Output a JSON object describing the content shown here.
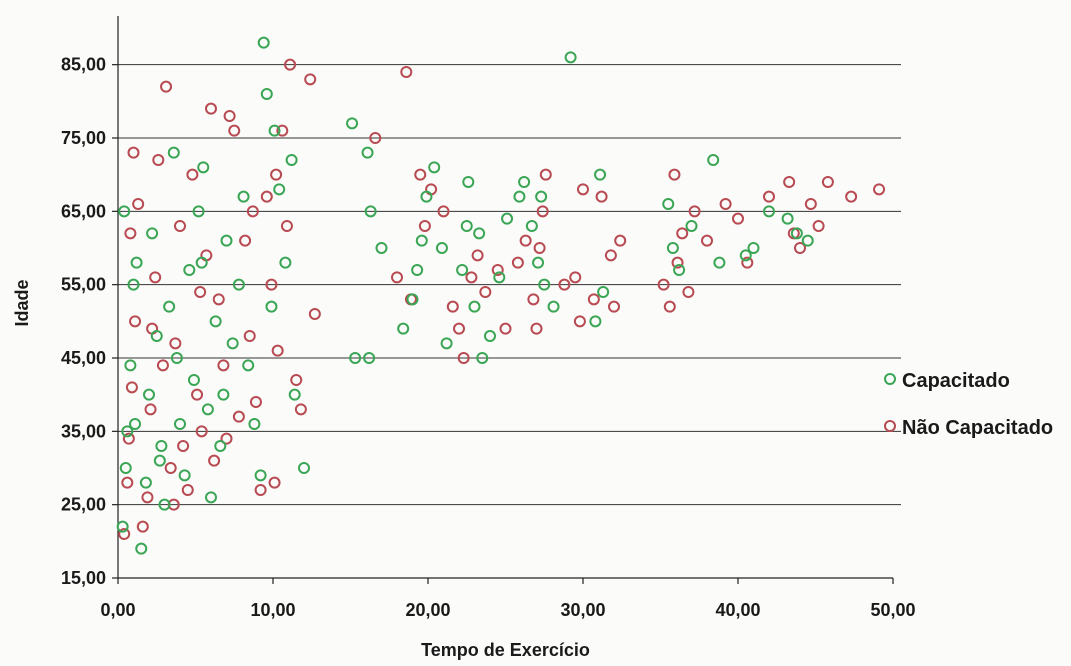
{
  "chart_data": {
    "type": "scatter",
    "title": "",
    "xlabel": "Tempo de Exercício",
    "ylabel": "Idade",
    "xlim": [
      0,
      50
    ],
    "ylim": [
      15,
      90
    ],
    "x_ticks": [
      "0,00",
      "10,00",
      "20,00",
      "30,00",
      "40,00",
      "50,00"
    ],
    "y_ticks": [
      "15,00",
      "25,00",
      "35,00",
      "45,00",
      "55,00",
      "65,00",
      "75,00",
      "85,00"
    ],
    "grid": true,
    "legend_position": "right",
    "series": [
      {
        "name": "Capacitado",
        "color": "#3aa655",
        "points": [
          [
            0.3,
            22
          ],
          [
            0.5,
            30
          ],
          [
            0.6,
            35
          ],
          [
            0.8,
            44
          ],
          [
            1.0,
            55
          ],
          [
            1.2,
            58
          ],
          [
            0.4,
            65
          ],
          [
            1.5,
            19
          ],
          [
            1.8,
            28
          ],
          [
            2.0,
            40
          ],
          [
            2.2,
            62
          ],
          [
            2.5,
            48
          ],
          [
            2.8,
            33
          ],
          [
            3.0,
            25
          ],
          [
            3.3,
            52
          ],
          [
            3.6,
            73
          ],
          [
            3.8,
            45
          ],
          [
            4.0,
            36
          ],
          [
            4.3,
            29
          ],
          [
            4.6,
            57
          ],
          [
            4.9,
            42
          ],
          [
            5.2,
            65
          ],
          [
            5.5,
            71
          ],
          [
            5.8,
            38
          ],
          [
            6.0,
            26
          ],
          [
            6.3,
            50
          ],
          [
            6.6,
            33
          ],
          [
            7.0,
            61
          ],
          [
            7.4,
            47
          ],
          [
            7.8,
            55
          ],
          [
            8.1,
            67
          ],
          [
            8.4,
            44
          ],
          [
            8.8,
            36
          ],
          [
            9.2,
            29
          ],
          [
            9.4,
            88
          ],
          [
            9.6,
            81
          ],
          [
            10.1,
            76
          ],
          [
            10.4,
            68
          ],
          [
            10.8,
            58
          ],
          [
            11.2,
            72
          ],
          [
            11.4,
            40
          ],
          [
            12.0,
            30
          ],
          [
            1.1,
            36
          ],
          [
            2.7,
            31
          ],
          [
            5.4,
            58
          ],
          [
            6.8,
            40
          ],
          [
            9.9,
            52
          ],
          [
            15.1,
            77
          ],
          [
            15.3,
            45
          ],
          [
            16.1,
            73
          ],
          [
            16.2,
            45
          ],
          [
            16.3,
            65
          ],
          [
            17.0,
            60
          ],
          [
            18.4,
            49
          ],
          [
            19.0,
            53
          ],
          [
            19.3,
            57
          ],
          [
            19.6,
            61
          ],
          [
            19.9,
            67
          ],
          [
            20.4,
            71
          ],
          [
            20.9,
            60
          ],
          [
            21.2,
            47
          ],
          [
            22.2,
            57
          ],
          [
            22.5,
            63
          ],
          [
            22.6,
            69
          ],
          [
            23.0,
            52
          ],
          [
            23.3,
            62
          ],
          [
            23.5,
            45
          ],
          [
            24.0,
            48
          ],
          [
            24.6,
            56
          ],
          [
            25.1,
            64
          ],
          [
            25.9,
            67
          ],
          [
            26.2,
            69
          ],
          [
            26.7,
            63
          ],
          [
            27.1,
            58
          ],
          [
            27.3,
            67
          ],
          [
            27.5,
            55
          ],
          [
            28.1,
            52
          ],
          [
            29.2,
            86
          ],
          [
            30.8,
            50
          ],
          [
            31.1,
            70
          ],
          [
            31.3,
            54
          ],
          [
            35.5,
            66
          ],
          [
            35.8,
            60
          ],
          [
            36.2,
            57
          ],
          [
            37.0,
            63
          ],
          [
            38.4,
            72
          ],
          [
            38.8,
            58
          ],
          [
            40.5,
            59
          ],
          [
            41.0,
            60
          ],
          [
            42.0,
            65
          ],
          [
            43.2,
            64
          ],
          [
            43.8,
            62
          ],
          [
            44.5,
            61
          ]
        ]
      },
      {
        "name": "Não Capacitado",
        "color": "#b84a52",
        "points": [
          [
            0.4,
            21
          ],
          [
            0.6,
            28
          ],
          [
            0.7,
            34
          ],
          [
            0.9,
            41
          ],
          [
            1.1,
            50
          ],
          [
            1.3,
            66
          ],
          [
            1.0,
            73
          ],
          [
            1.6,
            22
          ],
          [
            1.9,
            26
          ],
          [
            2.1,
            38
          ],
          [
            2.4,
            56
          ],
          [
            2.6,
            72
          ],
          [
            2.9,
            44
          ],
          [
            3.1,
            82
          ],
          [
            3.4,
            30
          ],
          [
            3.7,
            47
          ],
          [
            4.0,
            63
          ],
          [
            4.2,
            33
          ],
          [
            4.5,
            27
          ],
          [
            4.8,
            70
          ],
          [
            5.1,
            40
          ],
          [
            5.4,
            35
          ],
          [
            5.7,
            59
          ],
          [
            6.0,
            79
          ],
          [
            6.2,
            31
          ],
          [
            6.5,
            53
          ],
          [
            6.8,
            44
          ],
          [
            7.2,
            78
          ],
          [
            7.5,
            76
          ],
          [
            7.8,
            37
          ],
          [
            8.2,
            61
          ],
          [
            8.5,
            48
          ],
          [
            8.9,
            39
          ],
          [
            9.2,
            27
          ],
          [
            9.6,
            67
          ],
          [
            9.9,
            55
          ],
          [
            10.1,
            28
          ],
          [
            10.3,
            46
          ],
          [
            10.6,
            76
          ],
          [
            10.9,
            63
          ],
          [
            11.1,
            85
          ],
          [
            11.5,
            42
          ],
          [
            11.8,
            38
          ],
          [
            12.4,
            83
          ],
          [
            12.7,
            51
          ],
          [
            0.8,
            62
          ],
          [
            2.2,
            49
          ],
          [
            3.6,
            25
          ],
          [
            5.3,
            54
          ],
          [
            7.0,
            34
          ],
          [
            8.7,
            65
          ],
          [
            10.2,
            70
          ],
          [
            16.6,
            75
          ],
          [
            18.0,
            56
          ],
          [
            18.6,
            84
          ],
          [
            18.9,
            53
          ],
          [
            19.5,
            70
          ],
          [
            19.8,
            63
          ],
          [
            20.2,
            68
          ],
          [
            21.0,
            65
          ],
          [
            21.6,
            52
          ],
          [
            22.0,
            49
          ],
          [
            22.3,
            45
          ],
          [
            22.8,
            56
          ],
          [
            23.2,
            59
          ],
          [
            23.7,
            54
          ],
          [
            24.5,
            57
          ],
          [
            25.0,
            49
          ],
          [
            25.8,
            58
          ],
          [
            26.3,
            61
          ],
          [
            26.8,
            53
          ],
          [
            27.0,
            49
          ],
          [
            27.2,
            60
          ],
          [
            27.4,
            65
          ],
          [
            27.6,
            70
          ],
          [
            28.8,
            55
          ],
          [
            29.5,
            56
          ],
          [
            29.8,
            50
          ],
          [
            30.0,
            68
          ],
          [
            30.7,
            53
          ],
          [
            31.2,
            67
          ],
          [
            31.8,
            59
          ],
          [
            32.0,
            52
          ],
          [
            32.4,
            61
          ],
          [
            35.2,
            55
          ],
          [
            35.6,
            52
          ],
          [
            35.9,
            70
          ],
          [
            36.1,
            58
          ],
          [
            36.4,
            62
          ],
          [
            36.8,
            54
          ],
          [
            37.2,
            65
          ],
          [
            38.0,
            61
          ],
          [
            39.2,
            66
          ],
          [
            40.0,
            64
          ],
          [
            40.6,
            58
          ],
          [
            42.0,
            67
          ],
          [
            43.3,
            69
          ],
          [
            43.6,
            62
          ],
          [
            44.0,
            60
          ],
          [
            44.7,
            66
          ],
          [
            45.2,
            63
          ],
          [
            45.8,
            69
          ],
          [
            47.3,
            67
          ],
          [
            49.1,
            68
          ]
        ]
      }
    ]
  }
}
